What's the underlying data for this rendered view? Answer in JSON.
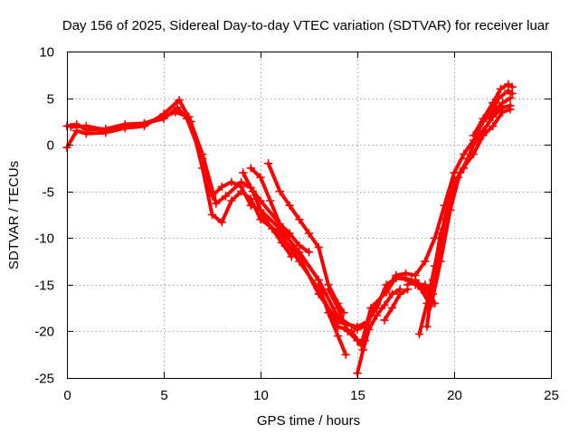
{
  "chart_data": {
    "type": "scatter",
    "title": "Day 156 of 2025, Sidereal Day-to-day VTEC variation (SDTVAR) for receiver luar",
    "xlabel": "GPS time / hours",
    "ylabel": "SDTVAR / TECUs",
    "xlim": [
      0,
      25
    ],
    "ylim": [
      -25,
      10
    ],
    "xticks": [
      "0",
      "5",
      "10",
      "15",
      "20",
      "25"
    ],
    "yticks": [
      "10",
      "5",
      "0",
      "-5",
      "-10",
      "-15",
      "-20",
      "-25"
    ],
    "grid": true,
    "marker": "plus",
    "color": "#ff0000",
    "series": [
      {
        "points": [
          [
            0.0,
            2.0
          ],
          [
            0.5,
            2.2
          ],
          [
            1.0,
            1.6
          ],
          [
            2.0,
            1.7
          ],
          [
            3.0,
            2.2
          ],
          [
            4.0,
            2.3
          ],
          [
            5.0,
            2.8
          ],
          [
            5.7,
            4.0
          ],
          [
            6.2,
            2.8
          ],
          [
            7.0,
            -1.5
          ],
          [
            7.5,
            -5.5
          ],
          [
            8.0,
            -4.5
          ],
          [
            8.5,
            -4.0
          ],
          [
            9.0,
            -4.5
          ],
          [
            9.5,
            -6.5
          ],
          [
            10.0,
            -7.0
          ],
          [
            11.0,
            -9.0
          ],
          [
            12.0,
            -11.5
          ],
          [
            13.0,
            -14.5
          ],
          [
            14.0,
            -18.5
          ],
          [
            15.0,
            -19.8
          ],
          [
            15.5,
            -19.3
          ],
          [
            16.0,
            -17.0
          ],
          [
            16.5,
            -15.5
          ],
          [
            17.0,
            -14.0
          ],
          [
            17.5,
            -13.8
          ],
          [
            18.0,
            -14.0
          ],
          [
            18.5,
            -12.5
          ],
          [
            19.0,
            -10.0
          ],
          [
            19.5,
            -6.5
          ],
          [
            20.0,
            -3.0
          ],
          [
            20.5,
            -1.0
          ],
          [
            21.0,
            0.5
          ],
          [
            21.5,
            2.5
          ],
          [
            22.0,
            3.5
          ],
          [
            22.5,
            4.5
          ],
          [
            22.9,
            5.0
          ]
        ]
      },
      {
        "points": [
          [
            0.0,
            -0.3
          ],
          [
            0.5,
            1.5
          ],
          [
            1.0,
            1.2
          ],
          [
            2.0,
            1.3
          ],
          [
            3.0,
            1.8
          ],
          [
            4.0,
            2.0
          ],
          [
            5.0,
            3.3
          ],
          [
            5.8,
            4.8
          ],
          [
            6.4,
            2.5
          ],
          [
            7.0,
            -2.5
          ],
          [
            7.5,
            -7.5
          ],
          [
            8.0,
            -8.3
          ],
          [
            8.5,
            -6.0
          ],
          [
            9.0,
            -5.0
          ],
          [
            9.5,
            -5.8
          ],
          [
            10.0,
            -8.0
          ],
          [
            11.0,
            -9.5
          ],
          [
            12.0,
            -12.5
          ],
          [
            13.0,
            -15.5
          ],
          [
            14.0,
            -19.5
          ],
          [
            14.7,
            -20.0
          ],
          [
            15.2,
            -21.5
          ],
          [
            15.7,
            -17.5
          ],
          [
            16.5,
            -15.8
          ],
          [
            17.0,
            -14.2
          ],
          [
            17.5,
            -14.3
          ],
          [
            18.0,
            -15.0
          ],
          [
            18.5,
            -15.0
          ],
          [
            18.9,
            -16.0
          ],
          [
            19.5,
            -8.0
          ],
          [
            20.0,
            -4.0
          ],
          [
            20.5,
            -2.5
          ],
          [
            21.0,
            0.0
          ],
          [
            21.5,
            1.5
          ],
          [
            22.0,
            3.0
          ],
          [
            22.5,
            4.0
          ],
          [
            22.9,
            4.2
          ]
        ]
      },
      {
        "points": [
          [
            0.2,
            1.9
          ],
          [
            1.0,
            2.0
          ],
          [
            2.0,
            1.6
          ],
          [
            3.0,
            2.0
          ],
          [
            4.0,
            2.3
          ],
          [
            5.0,
            3.0
          ],
          [
            5.6,
            3.5
          ],
          [
            6.3,
            3.0
          ],
          [
            7.0,
            -1.0
          ],
          [
            7.7,
            -6.3
          ],
          [
            8.2,
            -5.5
          ],
          [
            9.0,
            -4.0
          ],
          [
            9.5,
            -4.6
          ],
          [
            10.0,
            -6.0
          ],
          [
            11.0,
            -8.5
          ],
          [
            12.0,
            -12.0
          ],
          [
            13.0,
            -16.0
          ],
          [
            14.0,
            -19.0
          ],
          [
            15.0,
            -19.5
          ],
          [
            15.5,
            -19.0
          ],
          [
            16.0,
            -17.5
          ],
          [
            16.5,
            -15.0
          ],
          [
            17.0,
            -14.3
          ],
          [
            17.8,
            -14.5
          ],
          [
            18.3,
            -15.5
          ],
          [
            18.8,
            -17.3
          ],
          [
            19.3,
            -12.5
          ],
          [
            19.8,
            -7.0
          ],
          [
            20.3,
            -3.0
          ],
          [
            21.0,
            -1.0
          ],
          [
            21.5,
            1.0
          ],
          [
            22.0,
            2.0
          ],
          [
            22.5,
            3.5
          ],
          [
            22.9,
            3.8
          ]
        ]
      },
      {
        "points": [
          [
            9.5,
            -2.5
          ],
          [
            10.0,
            -3.5
          ],
          [
            10.5,
            -6.0
          ],
          [
            11.0,
            -8.5
          ],
          [
            11.5,
            -9.5
          ],
          [
            12.0,
            -10.8
          ],
          [
            12.5,
            -11.5
          ]
        ]
      },
      {
        "points": [
          [
            9.1,
            -3.0
          ],
          [
            9.6,
            -5.0
          ],
          [
            10.1,
            -7.5
          ],
          [
            10.6,
            -9.0
          ],
          [
            11.1,
            -10.5
          ],
          [
            11.6,
            -12.0
          ]
        ]
      },
      {
        "points": [
          [
            10.4,
            -2.0
          ],
          [
            11.0,
            -5.0
          ],
          [
            11.5,
            -6.5
          ],
          [
            12.0,
            -8.0
          ],
          [
            12.5,
            -9.5
          ],
          [
            13.0,
            -11.0
          ],
          [
            13.5,
            -15.0
          ],
          [
            14.0,
            -17.0
          ],
          [
            14.3,
            -18.0
          ]
        ]
      },
      {
        "points": [
          [
            13.5,
            -15.5
          ],
          [
            14.0,
            -17.5
          ],
          [
            14.5,
            -20.0
          ],
          [
            15.0,
            -21.0
          ],
          [
            15.4,
            -21.0
          ]
        ]
      },
      {
        "points": [
          [
            13.0,
            -15.0
          ],
          [
            13.5,
            -18.0
          ],
          [
            14.0,
            -20.5
          ],
          [
            14.4,
            -22.5
          ]
        ]
      },
      {
        "points": [
          [
            15.0,
            -24.5
          ],
          [
            15.3,
            -22.0
          ],
          [
            15.6,
            -19.8
          ],
          [
            16.0,
            -18.3
          ],
          [
            16.4,
            -17.2
          ],
          [
            16.8,
            -16.0
          ],
          [
            17.2,
            -15.5
          ]
        ]
      },
      {
        "points": [
          [
            16.4,
            -18.8
          ],
          [
            16.8,
            -17.5
          ],
          [
            17.2,
            -16.0
          ],
          [
            17.6,
            -15.5
          ]
        ]
      },
      {
        "points": [
          [
            17.6,
            -15.0
          ],
          [
            18.0,
            -14.5
          ],
          [
            18.5,
            -15.5
          ],
          [
            19.0,
            -17.0
          ]
        ]
      },
      {
        "points": [
          [
            18.2,
            -20.3
          ],
          [
            18.6,
            -17.0
          ],
          [
            19.0,
            -13.0
          ],
          [
            19.4,
            -9.0
          ],
          [
            19.8,
            -5.5
          ],
          [
            20.2,
            -3.5
          ],
          [
            20.7,
            -1.5
          ]
        ]
      },
      {
        "points": [
          [
            18.6,
            -19.5
          ],
          [
            18.9,
            -14.5
          ],
          [
            19.3,
            -9.5
          ]
        ]
      },
      {
        "points": [
          [
            21.0,
            1.0
          ],
          [
            21.5,
            2.8
          ],
          [
            22.0,
            4.5
          ],
          [
            22.4,
            6.0
          ],
          [
            22.8,
            6.5
          ],
          [
            23.0,
            6.2
          ]
        ]
      },
      {
        "points": [
          [
            21.8,
            3.0
          ],
          [
            22.3,
            5.0
          ],
          [
            22.8,
            5.8
          ],
          [
            23.0,
            5.5
          ]
        ]
      }
    ]
  }
}
